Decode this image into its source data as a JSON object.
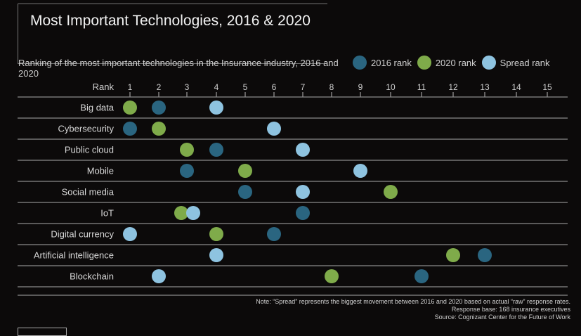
{
  "title": "Most Important Technologies, 2016 & 2020",
  "colors": {
    "rank_2016": "#2a6580",
    "rank_2020": "#7fab4a",
    "spread_rank": "#8ec3e0",
    "background": "#0c0a0a"
  },
  "chart_data": {
    "type": "scatter",
    "subtitle": "Ranking of the most important technologies in the Insurance industry, 2016 and 2020",
    "xlabel": "Rank",
    "xticks": [
      "1",
      "2",
      "3",
      "4",
      "5",
      "6",
      "7",
      "8",
      "9",
      "10",
      "11",
      "12",
      "13",
      "14",
      "15"
    ],
    "xlim": [
      1,
      15
    ],
    "legend_position": "top-right",
    "categories": [
      "Big data",
      "Cybersecurity",
      "Public cloud",
      "Mobile",
      "Social media",
      "IoT",
      "Digital currency",
      "Artificial intelligence",
      "Blockchain"
    ],
    "series": [
      {
        "name": "2016 rank",
        "values": [
          2,
          1,
          4,
          3,
          5,
          7,
          6,
          13,
          11
        ]
      },
      {
        "name": "2020 rank",
        "values": [
          1,
          2,
          3,
          5,
          10,
          3,
          4,
          12,
          8
        ]
      },
      {
        "name": "Spread rank",
        "values": [
          4,
          6,
          7,
          9,
          7,
          3,
          1,
          4,
          2
        ]
      }
    ]
  },
  "footer": {
    "note": "Note: “Spread” represents the biggest movement between 2016 and 2020 based on actual “raw” response rates.",
    "base": "Response base: 168 insurance executives",
    "source": "Source: Cognizant Center for the Future of Work"
  }
}
